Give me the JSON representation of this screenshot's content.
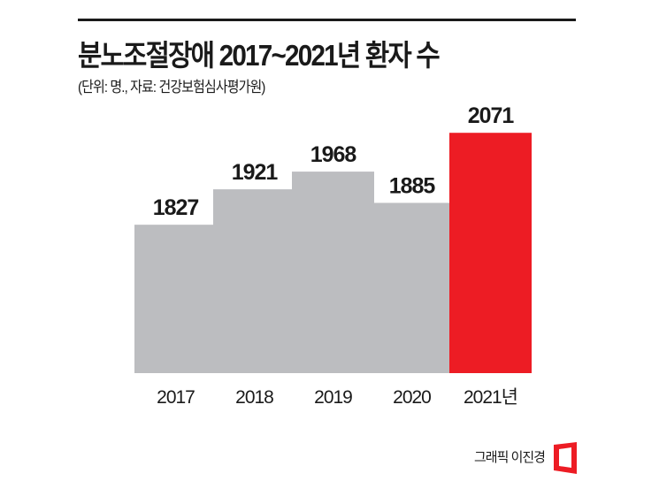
{
  "title": "분노조절장애 2017~2021년 환자 수",
  "subtitle": "(단위: 명., 자료: 건강보험심사평가원)",
  "credit": "그래픽 이진경",
  "colors": {
    "default_bar": "#bcbdc0",
    "highlight_bar": "#ed1c24",
    "logo": "#ed1c24"
  },
  "chart_data": {
    "type": "bar",
    "title": "분노조절장애 2017~2021년 환자 수",
    "categories": [
      "2017",
      "2018",
      "2019",
      "2020",
      "2021년"
    ],
    "values": [
      1827,
      1921,
      1968,
      1885,
      2071
    ],
    "highlight_index": 4,
    "xlabel": "",
    "ylabel": "",
    "ylim": [
      1433,
      2100
    ],
    "grid": false,
    "legend": "none"
  }
}
